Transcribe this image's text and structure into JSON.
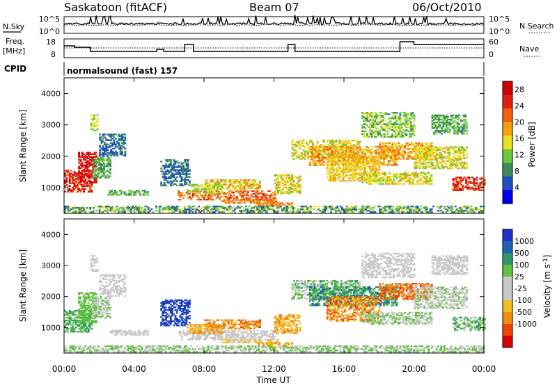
{
  "header": {
    "station": "Saskatoon (fitACF)",
    "beam": "Beam 07",
    "date": "06/Oct/2010"
  },
  "side_labels": {
    "nsky": "N.Sky",
    "nsearch": "N.Search",
    "freq": "Freq.",
    "freq_unit": "[MHz]",
    "nave": "Nave",
    "cpid": "CPID"
  },
  "noise_axis": {
    "left_top": "10^5",
    "left_bottom": "10^0",
    "right_top": "10^5",
    "right_bottom": "10^0"
  },
  "freq_axis": {
    "left_top": "18",
    "left_bottom": "8",
    "right_top": "60",
    "right_bottom": "0"
  },
  "cpid_text": "normalsound (fast) 157",
  "colors": {
    "power": [
      "#0000ee",
      "#2050c0",
      "#3a8a5a",
      "#6ec83c",
      "#e8e020",
      "#f5a010",
      "#f06010",
      "#e02010",
      "#d00000"
    ],
    "velocity": [
      "#dd0000",
      "#ee4400",
      "#f08a10",
      "#f0c020",
      "#c8c8c8",
      "#c8c8c8",
      "#60c040",
      "#2e9a6a",
      "#2060b0",
      "#2030c8"
    ]
  },
  "chart_data": [
    {
      "type": "heatmap",
      "title": "",
      "xlabel": "",
      "ylabel": "Slant Range [km]",
      "y_ticks": [
        "1000",
        "2000",
        "3000",
        "4000"
      ],
      "ylim": [
        180,
        4500
      ],
      "x_range_hours": [
        0,
        24
      ],
      "colorbar_label": "Power [dB]",
      "colorbar_ticks": [
        "4",
        "8",
        "12",
        "16",
        "20",
        "24",
        "28"
      ],
      "colorbar_range": [
        0,
        30
      ]
    },
    {
      "type": "heatmap",
      "title": "",
      "xlabel": "Time UT",
      "ylabel": "Slant Range [km]",
      "x_ticks": [
        "00:00",
        "04:00",
        "08:00",
        "12:00",
        "16:00",
        "20:00",
        "00:00"
      ],
      "y_ticks": [
        "1000",
        "2000",
        "3000",
        "4000"
      ],
      "ylim": [
        180,
        4500
      ],
      "x_range_hours": [
        0,
        24
      ],
      "colorbar_label": "Velocity [m s-1]",
      "colorbar_ticks": [
        "1000",
        "500",
        "100",
        "25",
        "-25",
        "-100",
        "-500",
        "-1000"
      ]
    }
  ]
}
